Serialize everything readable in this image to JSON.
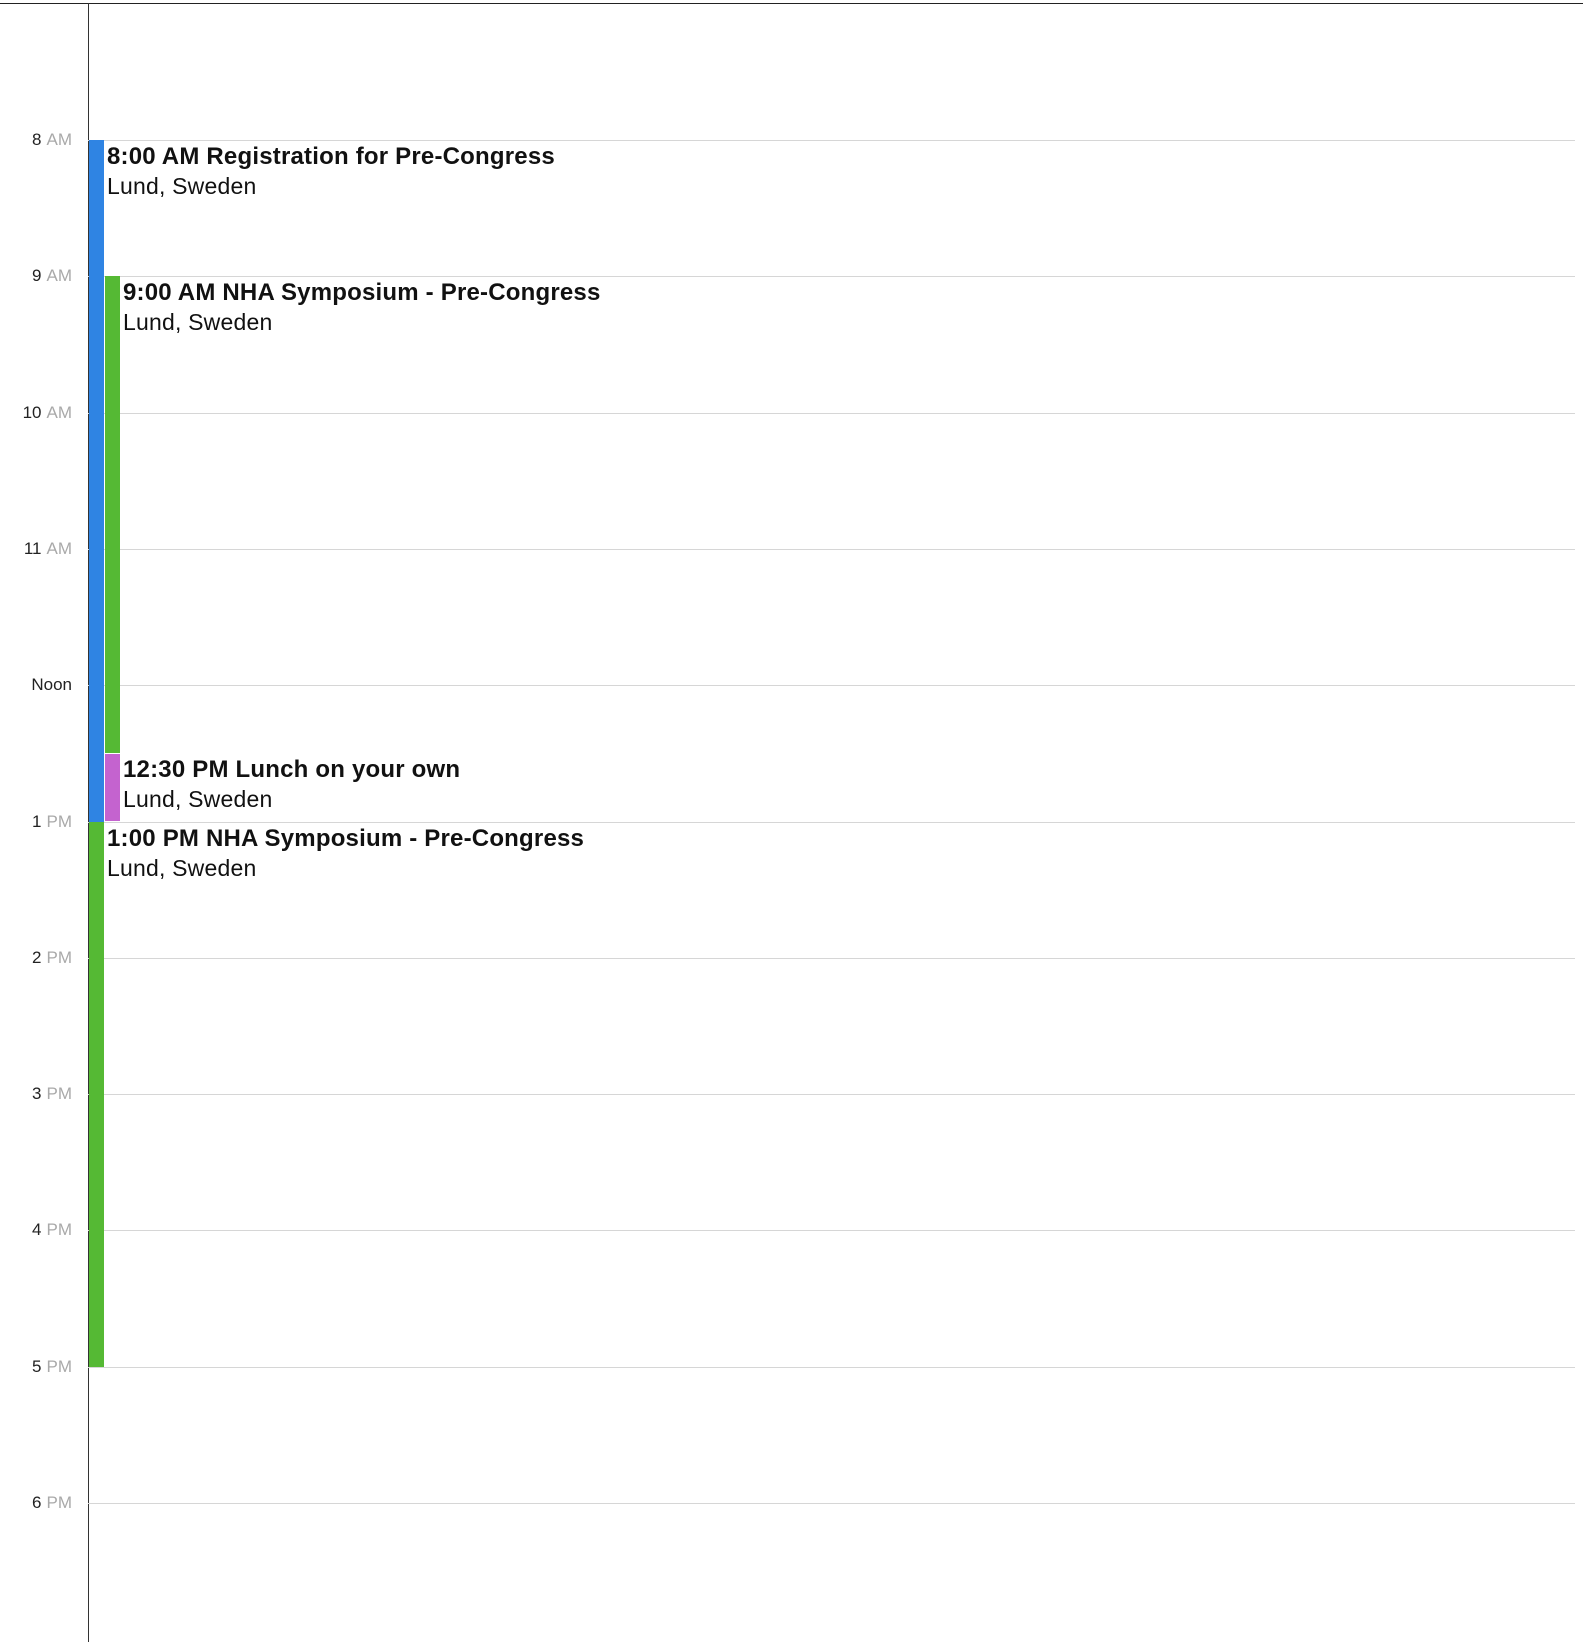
{
  "colors": {
    "blue": "#2f84e3",
    "green": "#55b934",
    "purple": "#c463cf"
  },
  "hours": [
    {
      "num": "8",
      "suffix": "AM"
    },
    {
      "num": "9",
      "suffix": "AM"
    },
    {
      "num": "10",
      "suffix": "AM"
    },
    {
      "num": "11",
      "suffix": "AM"
    },
    {
      "num": "Noon",
      "suffix": ""
    },
    {
      "num": "1",
      "suffix": "PM"
    },
    {
      "num": "2",
      "suffix": "PM"
    },
    {
      "num": "3",
      "suffix": "PM"
    },
    {
      "num": "4",
      "suffix": "PM"
    },
    {
      "num": "5",
      "suffix": "PM"
    },
    {
      "num": "6",
      "suffix": "PM"
    }
  ],
  "events": [
    {
      "title": "8:00 AM Registration for Pre-Congress",
      "location": "Lund, Sweden",
      "start": "8:00",
      "end": "13:00",
      "color": "blue"
    },
    {
      "title": "9:00 AM NHA Symposium - Pre-Congress",
      "location": "Lund, Sweden",
      "start": "9:00",
      "end": "12:30",
      "color": "green"
    },
    {
      "title": "12:30 PM Lunch on your own",
      "location": "Lund, Sweden",
      "start": "12:30",
      "end": "13:00",
      "color": "purple"
    },
    {
      "title": "1:00 PM NHA Symposium - Pre-Congress",
      "location": "Lund, Sweden",
      "start": "13:00",
      "end": "17:00",
      "color": "green"
    }
  ]
}
